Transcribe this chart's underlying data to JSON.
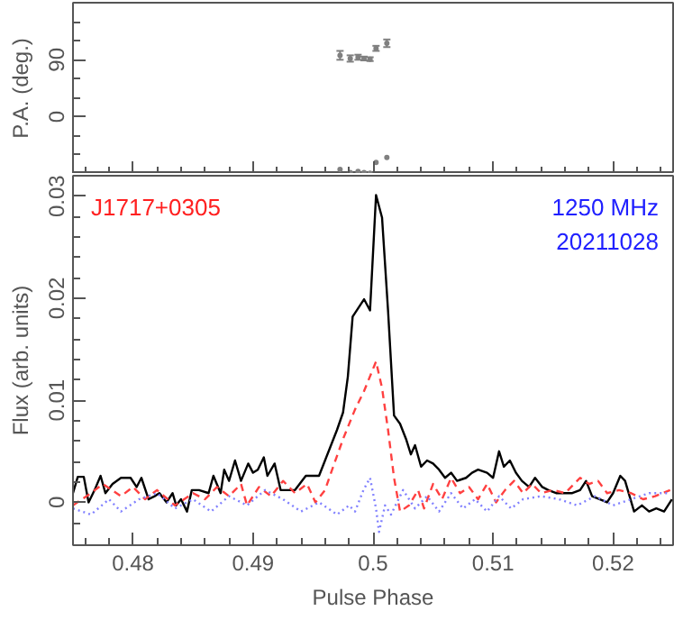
{
  "chart_data": [
    {
      "type": "scatter",
      "ylabel": "P.A. (deg.)",
      "xlim": [
        0.475,
        0.525
      ],
      "ylim": [
        -90,
        180
      ],
      "tick_labels": "y",
      "marker": "circle",
      "xticks": [
        0.48,
        0.49,
        0.5,
        0.51,
        0.52,
        {
          "value": 0.476,
          "label": null
        },
        {
          "value": 0.478,
          "label": null
        },
        {
          "value": 0.482,
          "label": null
        },
        {
          "value": 0.484,
          "label": null
        },
        {
          "value": 0.486,
          "label": null
        },
        {
          "value": 0.488,
          "label": null
        },
        {
          "value": 0.492,
          "label": null
        },
        {
          "value": 0.494,
          "label": null
        },
        {
          "value": 0.496,
          "label": null
        },
        {
          "value": 0.498,
          "label": null
        },
        {
          "value": 0.502,
          "label": null
        },
        {
          "value": 0.504,
          "label": null
        },
        {
          "value": 0.506,
          "label": null
        },
        {
          "value": 0.508,
          "label": null
        },
        {
          "value": 0.512,
          "label": null
        },
        {
          "value": 0.514,
          "label": null
        },
        {
          "value": 0.516,
          "label": null
        },
        {
          "value": 0.518,
          "label": null
        },
        {
          "value": 0.522,
          "label": null
        },
        {
          "value": 0.524,
          "label": null
        }
      ],
      "yticks": [
        0,
        90,
        {
          "value": -60,
          "label": null
        },
        {
          "value": -30,
          "label": null
        },
        {
          "value": 30,
          "label": null
        },
        {
          "value": 60,
          "label": null
        },
        {
          "value": 120,
          "label": null
        },
        {
          "value": 150,
          "label": null
        }
      ],
      "series": [
        {
          "color": "#808080",
          "x": [
            0.49725,
            0.4981,
            0.49875,
            0.49925,
            0.49975,
            0.50025,
            0.50115
          ],
          "values": [
            97,
            92,
            94,
            92,
            91,
            108,
            116
          ],
          "errors": [
            7,
            5,
            4,
            3,
            3,
            4,
            6
          ]
        },
        {
          "color": "#808080",
          "x": [
            0.49725,
            0.4981,
            0.49875,
            0.49925,
            0.49975,
            0.50025,
            0.50115
          ],
          "values": [
            -83,
            -88,
            -86,
            -88,
            -89,
            -72,
            -64
          ]
        }
      ]
    },
    {
      "type": "line",
      "xlabel": "Pulse Phase",
      "ylabel": "Flux (arb. units)",
      "xlim": [
        0.475,
        0.525
      ],
      "ylim": [
        -0.0042,
        0.032
      ],
      "xticks": [
        0.48,
        0.49,
        0.5,
        0.51,
        0.52,
        {
          "value": 0.476,
          "label": null
        },
        {
          "value": 0.478,
          "label": null
        },
        {
          "value": 0.482,
          "label": null
        },
        {
          "value": 0.484,
          "label": null
        },
        {
          "value": 0.486,
          "label": null
        },
        {
          "value": 0.488,
          "label": null
        },
        {
          "value": 0.492,
          "label": null
        },
        {
          "value": 0.494,
          "label": null
        },
        {
          "value": 0.496,
          "label": null
        },
        {
          "value": 0.498,
          "label": null
        },
        {
          "value": 0.502,
          "label": null
        },
        {
          "value": 0.504,
          "label": null
        },
        {
          "value": 0.506,
          "label": null
        },
        {
          "value": 0.508,
          "label": null
        },
        {
          "value": 0.512,
          "label": null
        },
        {
          "value": 0.514,
          "label": null
        },
        {
          "value": 0.516,
          "label": null
        },
        {
          "value": 0.518,
          "label": null
        },
        {
          "value": 0.522,
          "label": null
        },
        {
          "value": 0.524,
          "label": null
        }
      ],
      "yticks": [
        0,
        0.01,
        0.02,
        0.03,
        {
          "value": -0.002,
          "label": null
        },
        {
          "value": 0.002,
          "label": null
        },
        {
          "value": 0.004,
          "label": null
        },
        {
          "value": 0.006,
          "label": null
        },
        {
          "value": 0.008,
          "label": null
        },
        {
          "value": 0.012,
          "label": null
        },
        {
          "value": 0.014,
          "label": null
        },
        {
          "value": 0.016,
          "label": null
        },
        {
          "value": 0.018,
          "label": null
        },
        {
          "value": 0.022,
          "label": null
        },
        {
          "value": 0.024,
          "label": null
        },
        {
          "value": 0.026,
          "label": null
        },
        {
          "value": 0.028,
          "label": null
        }
      ],
      "annotations": [
        "J1717+0305",
        "1250 MHz",
        "20211028"
      ],
      "series": [
        {
          "color": "#000000",
          "line_style": "solid",
          "x": [
            0.475,
            0.4754,
            0.4759,
            0.4763,
            0.4768,
            0.4773,
            0.4777,
            0.4783,
            0.479,
            0.4798,
            0.4803,
            0.4807,
            0.4813,
            0.4818,
            0.4822,
            0.4828,
            0.4833,
            0.4836,
            0.484,
            0.4845,
            0.4849,
            0.4855,
            0.4863,
            0.4867,
            0.4873,
            0.4876,
            0.488,
            0.4885,
            0.489,
            0.4896,
            0.49,
            0.4904,
            0.4909,
            0.4912,
            0.4918,
            0.4923,
            0.4927,
            0.4935,
            0.4944,
            0.495,
            0.4955,
            0.496,
            0.4965,
            0.497,
            0.4975,
            0.4979,
            0.4983,
            0.49925,
            0.49975,
            0.50025,
            0.50075,
            0.50125,
            0.50175,
            0.50225,
            0.50275,
            0.50315,
            0.5035,
            0.504,
            0.5045,
            0.505,
            0.5055,
            0.506,
            0.5065,
            0.507,
            0.50775,
            0.50825,
            0.50875,
            0.5095,
            0.51,
            0.5105,
            0.5109,
            0.5114,
            0.5119,
            0.5124,
            0.513,
            0.5135,
            0.5141,
            0.5146,
            0.51525,
            0.516,
            0.5166,
            0.51725,
            0.51775,
            0.51825,
            0.5189,
            0.5195,
            0.52,
            0.5206,
            0.521,
            0.52175,
            0.5224,
            0.523,
            0.5236,
            0.52425,
            0.5249
          ],
          "values": [
            0.0009,
            0.0025,
            0.0025,
            0.0,
            0.0012,
            0.0026,
            0.0009,
            0.0018,
            0.0024,
            0.0024,
            0.0015,
            0.0024,
            0.0003,
            0.0006,
            0.0009,
            0.0,
            0.0009,
            -0.0003,
            0.0003,
            -0.0009,
            0.0012,
            0.0012,
            0.0009,
            0.0026,
            0.0009,
            0.0032,
            0.0021,
            0.0041,
            0.0021,
            0.0038,
            0.0029,
            0.0032,
            0.0044,
            0.0026,
            0.0038,
            0.0012,
            0.0012,
            0.0012,
            0.0026,
            0.0026,
            0.0026,
            0.0041,
            0.0056,
            0.0071,
            0.0088,
            0.0123,
            0.0182,
            0.0199,
            0.0188,
            0.0301,
            0.0279,
            0.0188,
            0.0085,
            0.0077,
            0.0062,
            0.0047,
            0.0056,
            0.0035,
            0.0041,
            0.0038,
            0.0032,
            0.0024,
            0.0029,
            0.0021,
            0.0024,
            0.0029,
            0.0032,
            0.0029,
            0.0024,
            0.005,
            0.0035,
            0.0041,
            0.0029,
            0.0021,
            0.0015,
            0.0024,
            0.0015,
            0.0012,
            0.0009,
            0.0009,
            0.0009,
            0.0012,
            0.0021,
            0.0006,
            0.0003,
            0.0,
            0.0009,
            0.0026,
            0.0021,
            -0.0009,
            -0.0003,
            -0.0009,
            -0.0006,
            -0.0009,
            0.0003
          ]
        },
        {
          "color": "#ff4040",
          "line_style": "dashed",
          "x": [
            0.475,
            0.4765,
            0.4775,
            0.479,
            0.48,
            0.481,
            0.482,
            0.4835,
            0.485,
            0.486,
            0.487,
            0.488,
            0.489,
            0.4895,
            0.4905,
            0.4915,
            0.4925,
            0.4935,
            0.4945,
            0.4952,
            0.496,
            0.4965,
            0.4975,
            0.4985,
            0.49925,
            0.50025,
            0.50075,
            0.50125,
            0.50175,
            0.50225,
            0.503,
            0.50375,
            0.50425,
            0.505,
            0.50575,
            0.5065,
            0.50725,
            0.508,
            0.50875,
            0.5095,
            0.51025,
            0.511,
            0.51175,
            0.5125,
            0.51325,
            0.514,
            0.515,
            0.516,
            0.51725,
            0.518,
            0.51875,
            0.5195,
            0.5205,
            0.5215,
            0.5225,
            0.5235,
            0.52475
          ],
          "values": [
            -0.0003,
            0.0009,
            0.0018,
            0.0006,
            0.0015,
            0.0003,
            0.0012,
            -0.0003,
            0.0009,
            0.0003,
            0.0015,
            0.0006,
            0.0018,
            -0.0003,
            0.0015,
            0.0006,
            0.0021,
            0.0009,
            0.0018,
            0.0,
            0.0012,
            0.0029,
            0.0062,
            0.0091,
            0.0109,
            0.0138,
            0.0112,
            0.0071,
            0.0024,
            -0.0009,
            -0.0003,
            0.0012,
            -0.0006,
            0.0018,
            0.0003,
            0.0024,
            0.0009,
            0.0015,
            0.0003,
            0.0018,
            0.0,
            0.0012,
            0.0021,
            0.0009,
            0.0018,
            0.0009,
            0.0012,
            0.0009,
            0.0024,
            0.0018,
            0.0021,
            0.0009,
            0.0012,
            0.0009,
            0.0003,
            0.0006,
            0.0012
          ]
        },
        {
          "color": "#8080ff",
          "line_style": "dotted",
          "x": [
            0.475,
            0.4765,
            0.478,
            0.479,
            0.4805,
            0.482,
            0.4835,
            0.485,
            0.4865,
            0.488,
            0.4895,
            0.491,
            0.4925,
            0.494,
            0.4955,
            0.497,
            0.498,
            0.4985,
            0.4992,
            0.49975,
            0.50025,
            0.5005,
            0.501,
            0.5015,
            0.5025,
            0.5035,
            0.5045,
            0.5055,
            0.5065,
            0.5075,
            0.5085,
            0.5095,
            0.5105,
            0.5115,
            0.5125,
            0.514,
            0.5155,
            0.517,
            0.5185,
            0.52,
            0.5215,
            0.523,
            0.5245
          ],
          "values": [
            -0.0006,
            -0.0012,
            0.0003,
            -0.0009,
            0.0003,
            0.0009,
            -0.0006,
            0.0003,
            -0.0009,
            0.0006,
            -0.0003,
            0.0012,
            0.0003,
            -0.0009,
            0.0,
            -0.0012,
            -0.0003,
            -0.0009,
            0.0012,
            0.0024,
            -0.0006,
            -0.0029,
            -0.0003,
            -0.0012,
            0.0012,
            -0.0006,
            0.0006,
            -0.0009,
            0.0009,
            -0.0006,
            0.0003,
            -0.0009,
            0.0006,
            -0.0006,
            0.0003,
            0.0006,
            0.0003,
            -0.0003,
            0.0006,
            -0.0003,
            0.0003,
            0.0009,
            0.0009
          ]
        }
      ]
    }
  ]
}
